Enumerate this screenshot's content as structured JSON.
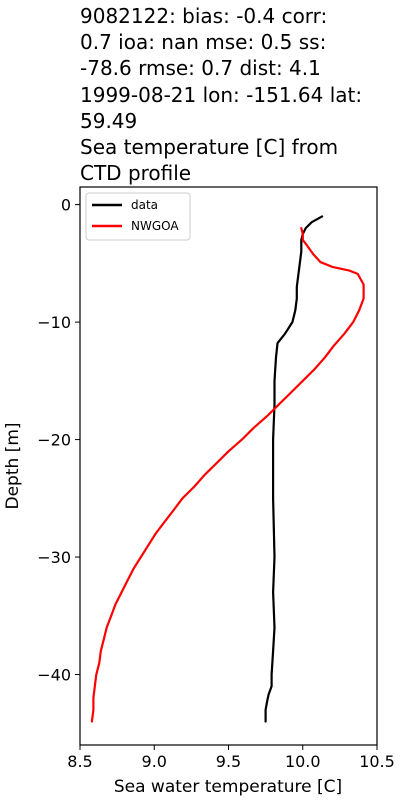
{
  "title_lines": [
    "9082122: bias: -0.4  corr:",
    "0.7  ioa: nan  mse: 0.5  ss:",
    "-78.6  rmse: 0.7  dist: 4.1",
    "1999-08-21 lon: -151.64 lat:",
    "59.49",
    "Sea temperature [C] from",
    "CTD profile"
  ],
  "chart_data": {
    "type": "line",
    "xlabel": "Sea water temperature [C]",
    "ylabel": "Depth [m]",
    "xlim": [
      8.5,
      10.5
    ],
    "ylim": [
      -46,
      1.5
    ],
    "xticks": [
      8.5,
      9.0,
      9.5,
      10.0,
      10.5
    ],
    "xtick_labels": [
      "8.5",
      "9.0",
      "9.5",
      "10.0",
      "10.5"
    ],
    "yticks": [
      0,
      -10,
      -20,
      -30,
      -40
    ],
    "ytick_labels": [
      "0",
      "−10",
      "−20",
      "−30",
      "−40"
    ],
    "grid": false,
    "legend_position": "top-left",
    "series": [
      {
        "name": "data",
        "color": "#000000",
        "points": [
          [
            10.13,
            -1.0
          ],
          [
            10.06,
            -1.5
          ],
          [
            10.02,
            -2.0
          ],
          [
            10.0,
            -2.5
          ],
          [
            9.99,
            -3.0
          ],
          [
            9.99,
            -4.0
          ],
          [
            9.98,
            -5.0
          ],
          [
            9.97,
            -6.0
          ],
          [
            9.96,
            -7.0
          ],
          [
            9.96,
            -8.0
          ],
          [
            9.95,
            -9.0
          ],
          [
            9.93,
            -10.0
          ],
          [
            9.88,
            -11.0
          ],
          [
            9.83,
            -11.8
          ],
          [
            9.82,
            -13.0
          ],
          [
            9.81,
            -15.0
          ],
          [
            9.81,
            -17.0
          ],
          [
            9.8,
            -20.0
          ],
          [
            9.8,
            -25.0
          ],
          [
            9.81,
            -30.0
          ],
          [
            9.8,
            -33.0
          ],
          [
            9.81,
            -36.0
          ],
          [
            9.8,
            -38.0
          ],
          [
            9.79,
            -40.0
          ],
          [
            9.79,
            -41.0
          ],
          [
            9.77,
            -41.7
          ],
          [
            9.76,
            -42.3
          ],
          [
            9.75,
            -43.0
          ],
          [
            9.75,
            -44.0
          ]
        ]
      },
      {
        "name": "NWGOA",
        "color": "#ff0000",
        "points": [
          [
            9.99,
            -2.0
          ],
          [
            10.0,
            -2.5
          ],
          [
            10.0,
            -3.0
          ],
          [
            10.03,
            -3.5
          ],
          [
            10.07,
            -4.2
          ],
          [
            10.12,
            -4.9
          ],
          [
            10.2,
            -5.3
          ],
          [
            10.31,
            -5.6
          ],
          [
            10.37,
            -5.9
          ],
          [
            10.41,
            -6.8
          ],
          [
            10.41,
            -8.0
          ],
          [
            10.38,
            -9.0
          ],
          [
            10.34,
            -10.0
          ],
          [
            10.28,
            -11.0
          ],
          [
            10.21,
            -12.0
          ],
          [
            10.15,
            -13.0
          ],
          [
            10.08,
            -14.0
          ],
          [
            10.0,
            -15.0
          ],
          [
            9.92,
            -16.0
          ],
          [
            9.84,
            -17.0
          ],
          [
            9.76,
            -18.0
          ],
          [
            9.67,
            -19.0
          ],
          [
            9.59,
            -20.0
          ],
          [
            9.5,
            -21.0
          ],
          [
            9.42,
            -22.0
          ],
          [
            9.34,
            -23.0
          ],
          [
            9.27,
            -24.0
          ],
          [
            9.19,
            -25.0
          ],
          [
            9.13,
            -26.0
          ],
          [
            9.07,
            -27.0
          ],
          [
            9.01,
            -28.0
          ],
          [
            8.96,
            -29.0
          ],
          [
            8.91,
            -30.0
          ],
          [
            8.86,
            -31.0
          ],
          [
            8.82,
            -32.0
          ],
          [
            8.78,
            -33.0
          ],
          [
            8.74,
            -34.0
          ],
          [
            8.71,
            -35.0
          ],
          [
            8.68,
            -36.0
          ],
          [
            8.66,
            -37.0
          ],
          [
            8.64,
            -38.0
          ],
          [
            8.63,
            -39.0
          ],
          [
            8.61,
            -40.0
          ],
          [
            8.6,
            -41.0
          ],
          [
            8.59,
            -42.0
          ],
          [
            8.59,
            -43.0
          ],
          [
            8.58,
            -44.0
          ]
        ]
      }
    ]
  }
}
